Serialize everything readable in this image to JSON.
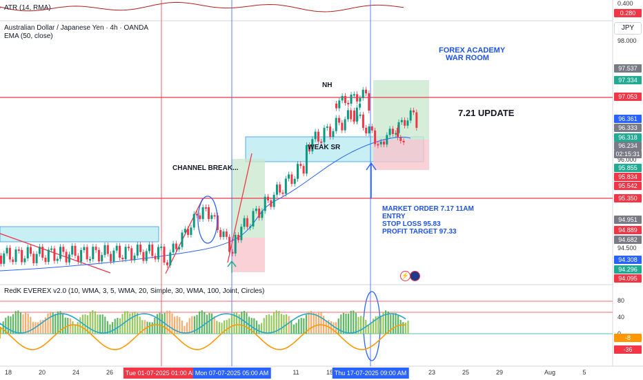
{
  "header": {
    "atr_label": "ATR (14, RMA)",
    "symbol": "Australian Dollar / Japanese Yen · 4h · OANDA",
    "ema_label": "EMA (50, close)",
    "indicator_label": "RedK EVEREX v2.0 (10, WMA, 3, 5, WMA, 20, Simple, 30, WMA, 100, Joint, Circles)"
  },
  "currency": "JPY",
  "annotations": {
    "forex_academy": "FOREX ACADEMY",
    "war_room": "WAR ROOM",
    "update": "7.21 UPDATE",
    "nh": "NH",
    "weak_sr": "WEAK SR",
    "channel_break": "CHANNEL BREAK...",
    "market_order": "MARKET ORDER 7.17 11AM",
    "entry": "ENTRY",
    "stop_loss": "STOP LOSS   95.83",
    "profit_target": "PROFIT TARGET 97.33"
  },
  "price_axis": {
    "atr_ticks": [
      "0.400"
    ],
    "atr_current": "0.280",
    "ticks": [
      "98.000",
      "96.000",
      "94.500"
    ],
    "labels": [
      {
        "text": "97.537",
        "color": "#787b86"
      },
      {
        "text": "97.334",
        "color": "#22ab94"
      },
      {
        "text": "97.053",
        "color": "#f23645"
      },
      {
        "text": "96.361",
        "color": "#2962ff"
      },
      {
        "text": "96.333",
        "color": "#787b86"
      },
      {
        "text": "96.318",
        "color": "#22ab94"
      },
      {
        "text": "96.234",
        "color": "#787b86"
      },
      {
        "text": "02:15:31",
        "color": "#787b86"
      },
      {
        "text": "95.855",
        "color": "#22ab94"
      },
      {
        "text": "95.834",
        "color": "#f23645"
      },
      {
        "text": "95.542",
        "color": "#f23645"
      },
      {
        "text": "95.350",
        "color": "#f23645"
      },
      {
        "text": "94.951",
        "color": "#787b86"
      },
      {
        "text": "94.889",
        "color": "#f23645"
      },
      {
        "text": "94.682",
        "color": "#787b86"
      },
      {
        "text": "94.308",
        "color": "#2962ff"
      },
      {
        "text": "94.296",
        "color": "#22ab94"
      },
      {
        "text": "94.095",
        "color": "#f23645"
      }
    ],
    "osc_ticks": [
      "80",
      "40",
      "0"
    ],
    "osc_labels": [
      {
        "text": "-8",
        "color": "#ff9800"
      },
      {
        "text": "-36",
        "color": "#f23645"
      }
    ]
  },
  "time_axis": {
    "ticks": [
      "18",
      "20",
      "24",
      "26",
      "11",
      "15",
      "23",
      "25",
      "29",
      "Aug",
      "5"
    ],
    "highlights": [
      {
        "text": "Tue 01-07-2025   01:00 AM",
        "style": "red"
      },
      {
        "text": "Mon 07-07-2025   05:00 AM",
        "style": "blue"
      },
      {
        "text": "Thu 17-07-2025   09:00 AM",
        "style": "blue"
      }
    ]
  }
}
